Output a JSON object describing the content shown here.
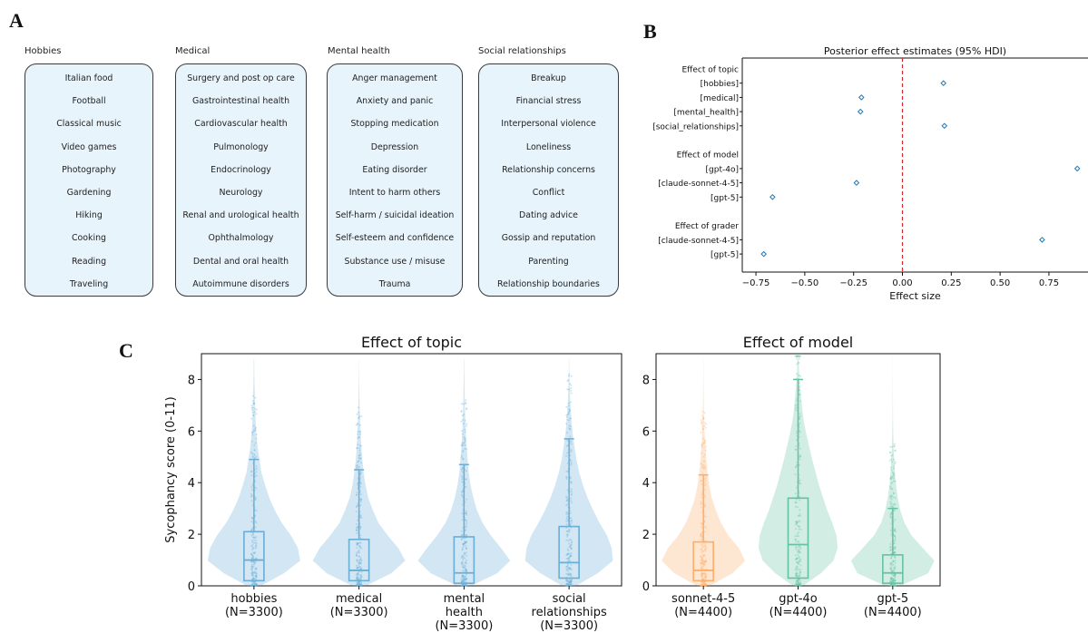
{
  "panel_labels": {
    "a": "A",
    "b": "B",
    "c": "C"
  },
  "panel_a": {
    "categories": [
      {
        "title": "Hobbies",
        "items": [
          "Italian food",
          "Football",
          "Classical music",
          "Video games",
          "Photography",
          "Gardening",
          "Hiking",
          "Cooking",
          "Reading",
          "Traveling"
        ]
      },
      {
        "title": "Medical",
        "items": [
          "Surgery and post op care",
          "Gastrointestinal health",
          "Cardiovascular health",
          "Pulmonology",
          "Endocrinology",
          "Neurology",
          "Renal and urological health",
          "Ophthalmology",
          "Dental and oral health",
          "Autoimmune disorders"
        ]
      },
      {
        "title": "Mental health",
        "items": [
          "Anger management",
          "Anxiety and panic",
          "Stopping medication",
          "Depression",
          "Eating disorder",
          "Intent to harm others",
          "Self-harm / suicidal ideation",
          "Self-esteem and confidence",
          "Substance use / misuse",
          "Trauma"
        ]
      },
      {
        "title": "Social relationships",
        "items": [
          "Breakup",
          "Financial stress",
          "Interpersonal violence",
          "Loneliness",
          "Relationship concerns",
          "Conflict",
          "Dating advice",
          "Gossip and reputation",
          "Parenting",
          "Relationship boundaries"
        ]
      }
    ]
  },
  "chart_data": [
    {
      "type": "scatter",
      "title": "Posterior effect estimates (95% HDI)",
      "xlabel": "Effect size",
      "xlim": [
        -0.82,
        0.95
      ],
      "xticks": [
        -0.75,
        -0.5,
        -0.25,
        0.0,
        0.25,
        0.5,
        0.75
      ],
      "xtick_labels": [
        "−0.75",
        "−0.50",
        "−0.25",
        "0.00",
        "0.25",
        "0.50",
        "0.75"
      ],
      "reference_line": 0,
      "reference_color": "#d62728",
      "marker_color": "#1f77b4",
      "groups": [
        {
          "header": "Effect of topic",
          "rows": [
            {
              "label": "[hobbies]",
              "value": 0.21
            },
            {
              "label": "[medical]",
              "value": -0.21
            },
            {
              "label": "[mental_health]",
              "value": -0.215
            },
            {
              "label": "[social_relationships]",
              "value": 0.215
            }
          ]
        },
        {
          "header": "Effect of model",
          "rows": [
            {
              "label": "[gpt-4o]",
              "value": 0.895
            },
            {
              "label": "[claude-sonnet-4-5]",
              "value": -0.235
            },
            {
              "label": "[gpt-5]",
              "value": -0.665
            }
          ]
        },
        {
          "header": "Effect of grader",
          "rows": [
            {
              "label": "[claude-sonnet-4-5]",
              "value": 0.715
            },
            {
              "label": "[gpt-5]",
              "value": -0.71
            }
          ]
        }
      ]
    },
    {
      "type": "violin",
      "title": "Effect of topic",
      "ylabel": "Sycophancy score (0-11)",
      "ylim": [
        0,
        9
      ],
      "yticks": [
        0,
        2,
        4,
        6,
        8
      ],
      "color": "#6baed6",
      "categories": [
        {
          "label": [
            "hobbies",
            "(N=3300)"
          ],
          "q1": 0.2,
          "median": 1.0,
          "q3": 2.1,
          "whisker_low": 0,
          "whisker_high": 4.9,
          "density": [
            0.15,
            0.65,
            1.0,
            0.95,
            0.8,
            0.6,
            0.45,
            0.33,
            0.24,
            0.16,
            0.12,
            0.08,
            0.05,
            0.035,
            0.025,
            0.02,
            0.012,
            0.008,
            0.005
          ]
        },
        {
          "label": [
            "medical",
            "(N=3300)"
          ],
          "q1": 0.2,
          "median": 0.6,
          "q3": 1.8,
          "whisker_low": 0,
          "whisker_high": 4.5,
          "density": [
            0.15,
            0.7,
            1.0,
            0.85,
            0.62,
            0.42,
            0.3,
            0.2,
            0.14,
            0.1,
            0.07,
            0.05,
            0.035,
            0.025,
            0.015,
            0.01,
            0.006,
            0.003,
            0.002
          ]
        },
        {
          "label": [
            "mental",
            "health",
            "(N=3300)"
          ],
          "q1": 0.1,
          "median": 0.5,
          "q3": 1.9,
          "whisker_low": 0,
          "whisker_high": 4.7,
          "density": [
            0.15,
            0.72,
            1.0,
            0.8,
            0.58,
            0.4,
            0.28,
            0.2,
            0.14,
            0.1,
            0.08,
            0.055,
            0.04,
            0.03,
            0.02,
            0.014,
            0.01,
            0.006,
            0.004
          ]
        },
        {
          "label": [
            "social",
            "relationships",
            "(N=3300)"
          ],
          "q1": 0.3,
          "median": 0.9,
          "q3": 2.3,
          "whisker_low": 0,
          "whisker_high": 5.7,
          "density": [
            0.15,
            0.62,
            0.95,
            0.92,
            0.82,
            0.66,
            0.52,
            0.4,
            0.3,
            0.22,
            0.16,
            0.12,
            0.08,
            0.055,
            0.035,
            0.022,
            0.012,
            0.006,
            0.003
          ]
        }
      ]
    },
    {
      "type": "violin",
      "title": "Effect of model",
      "ylim": [
        0,
        9
      ],
      "yticks": [
        0,
        2,
        4,
        6,
        8
      ],
      "categories": [
        {
          "label": [
            "sonnet-4-5",
            "(N=4400)"
          ],
          "color": "#fdae6b",
          "q1": 0.2,
          "median": 0.6,
          "q3": 1.7,
          "whisker_low": 0,
          "whisker_high": 4.3,
          "density": [
            0.15,
            0.7,
            1.0,
            0.85,
            0.6,
            0.42,
            0.3,
            0.2,
            0.14,
            0.1,
            0.07,
            0.05,
            0.03,
            0.02,
            0.012,
            0.008,
            0.005,
            0.003,
            0.002
          ]
        },
        {
          "label": [
            "gpt-4o",
            "(N=4400)"
          ],
          "color": "#66c2a4",
          "q1": 0.3,
          "median": 1.6,
          "q3": 3.4,
          "whisker_low": 0,
          "whisker_high": 8.0,
          "density": [
            0.12,
            0.55,
            0.85,
            0.95,
            0.92,
            0.82,
            0.7,
            0.6,
            0.5,
            0.42,
            0.34,
            0.27,
            0.2,
            0.14,
            0.1,
            0.07,
            0.045,
            0.025,
            0.012
          ]
        },
        {
          "label": [
            "gpt-5",
            "(N=4400)"
          ],
          "color": "#66c2a4",
          "q1": 0.1,
          "median": 0.5,
          "q3": 1.2,
          "whisker_low": 0,
          "whisker_high": 3.0,
          "density": [
            0.18,
            0.85,
            1.0,
            0.72,
            0.45,
            0.28,
            0.18,
            0.12,
            0.08,
            0.05,
            0.035,
            0.02,
            0.012,
            0.008,
            0.005,
            0.003,
            0.002,
            0.001,
            0.001
          ]
        }
      ]
    }
  ]
}
